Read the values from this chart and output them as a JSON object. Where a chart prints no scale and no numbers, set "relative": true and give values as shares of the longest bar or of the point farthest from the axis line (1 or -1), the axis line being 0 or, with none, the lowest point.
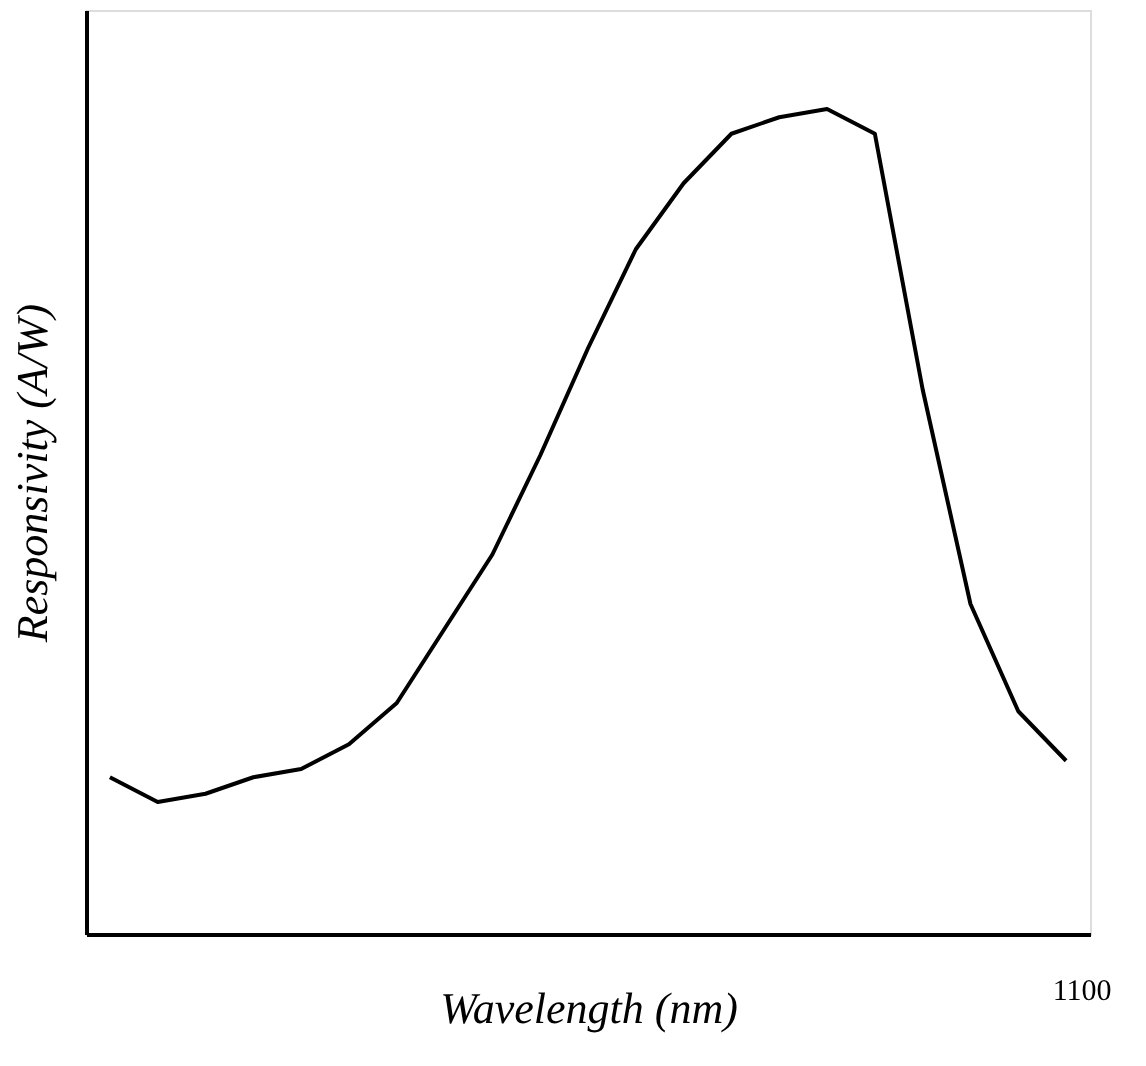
{
  "chart_data": {
    "type": "line",
    "relative": true,
    "xlabel": "Wavelength (nm)",
    "ylabel": "Responsivity (A/W)",
    "categories": [
      null,
      null,
      null,
      null,
      null,
      null,
      null,
      null,
      null,
      null,
      null,
      null,
      null,
      null,
      null,
      null,
      null,
      null,
      null,
      null,
      null
    ],
    "color": "#000000",
    "values": [
      0.19,
      0.16,
      0.17,
      0.19,
      0.2,
      0.23,
      0.28,
      0.37,
      0.46,
      0.58,
      0.71,
      0.83,
      0.91,
      0.97,
      0.99,
      1.0,
      0.97,
      0.66,
      0.4,
      0.27,
      0.21
    ],
    "annotations": [
      "1100"
    ],
    "grid": false,
    "marker": "none",
    "line_style": "solid"
  }
}
